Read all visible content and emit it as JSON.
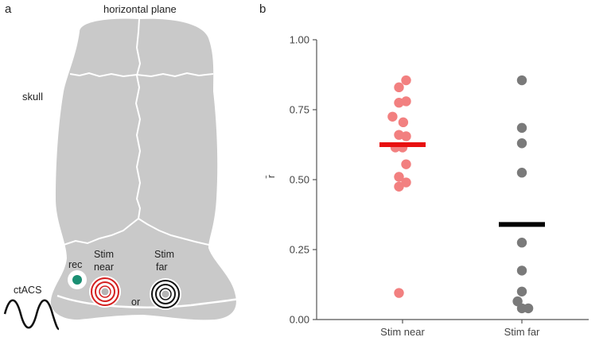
{
  "panel_a": {
    "letter": "a",
    "title": "horizontal plane",
    "skull_label": "skull",
    "rec_label": "rec",
    "stim_near_label": [
      "Stim",
      "near"
    ],
    "stim_far_label": [
      "Stim",
      "far"
    ],
    "or_label": "or",
    "ctacs_label": "ctACS",
    "colors": {
      "skull": "#c9c9c9",
      "rec": "#1a8f73",
      "near_rings": "#d42020",
      "far_rings": "#111111",
      "electrode_center": "#b5b5b5"
    }
  },
  "panel_b": {
    "letter": "b"
  },
  "chart_data": {
    "type": "scatter",
    "title": "",
    "xlabel": "",
    "ylabel": "r̄",
    "categories": [
      "Stim near",
      "Stim far"
    ],
    "ylim": [
      0,
      1
    ],
    "yticks": [
      0.0,
      0.25,
      0.5,
      0.75,
      1.0
    ],
    "ytick_labels": [
      "0.00",
      "0.25",
      "0.50",
      "0.75",
      "1.00"
    ],
    "grid": false,
    "series": [
      {
        "category": "Stim near",
        "color": "#f28080",
        "mean": 0.625,
        "mean_color": "#e81010",
        "points": [
          {
            "dx": 0.5,
            "y": 0.855
          },
          {
            "dx": -0.5,
            "y": 0.83
          },
          {
            "dx": 0.5,
            "y": 0.78
          },
          {
            "dx": -0.5,
            "y": 0.775
          },
          {
            "dx": -1.4,
            "y": 0.725
          },
          {
            "dx": 0.1,
            "y": 0.705
          },
          {
            "dx": -0.5,
            "y": 0.66
          },
          {
            "dx": 0.5,
            "y": 0.655
          },
          {
            "dx": 0.0,
            "y": 0.615
          },
          {
            "dx": -1.0,
            "y": 0.615
          },
          {
            "dx": 0.5,
            "y": 0.555
          },
          {
            "dx": -0.5,
            "y": 0.51
          },
          {
            "dx": 0.5,
            "y": 0.49
          },
          {
            "dx": -0.5,
            "y": 0.475
          },
          {
            "dx": -0.5,
            "y": 0.095
          }
        ]
      },
      {
        "category": "Stim far",
        "color": "#7a7a7a",
        "mean": 0.34,
        "mean_color": "#000000",
        "points": [
          {
            "dx": 0.0,
            "y": 0.855
          },
          {
            "dx": 0.0,
            "y": 0.685
          },
          {
            "dx": 0.0,
            "y": 0.63
          },
          {
            "dx": 0.0,
            "y": 0.525
          },
          {
            "dx": 0.0,
            "y": 0.275
          },
          {
            "dx": 0.0,
            "y": 0.175
          },
          {
            "dx": 0.0,
            "y": 0.1
          },
          {
            "dx": -0.6,
            "y": 0.065
          },
          {
            "dx": 0.0,
            "y": 0.04
          },
          {
            "dx": 0.9,
            "y": 0.04
          }
        ]
      }
    ]
  }
}
